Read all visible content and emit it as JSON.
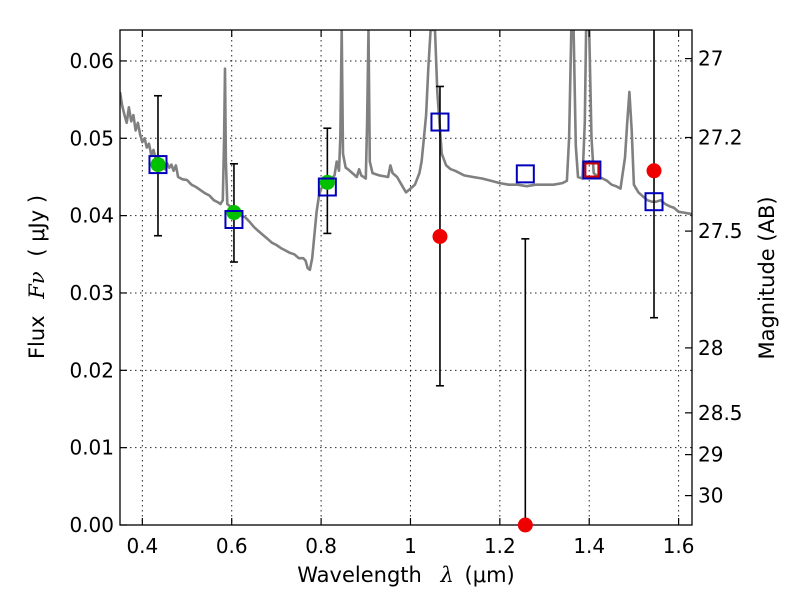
{
  "chart_data": {
    "type": "scatter",
    "title": "",
    "xlabel": "Wavelength",
    "xlabel_symbol": "λ",
    "xlabel_unit": "(μm)",
    "ylabel": "Flux",
    "ylabel_symbol": "Fν",
    "ylabel_unit": "( μJy )",
    "ylabel_right": "Magnitude (AB)",
    "xlim": [
      0.35,
      1.63
    ],
    "ylim": [
      0.0,
      0.064
    ],
    "grid": true,
    "legend": "none",
    "x_ticks": [
      0.4,
      0.6,
      0.8,
      1.0,
      1.2,
      1.4,
      1.6
    ],
    "x_tick_labels": [
      "0.4",
      "0.6",
      "0.8",
      "1",
      "1.2",
      "1.4",
      "1.6"
    ],
    "y_ticks": [
      0.0,
      0.01,
      0.02,
      0.03,
      0.04,
      0.05,
      0.06
    ],
    "y_tick_labels": [
      "0.00",
      "0.01",
      "0.02",
      "0.03",
      "0.04",
      "0.05",
      "0.06"
    ],
    "right_ticks": [
      {
        "label": "27",
        "flux": 0.0603
      },
      {
        "label": "27.2",
        "flux": 0.0501
      },
      {
        "label": "27.5",
        "flux": 0.038
      },
      {
        "label": "28",
        "flux": 0.0229
      },
      {
        "label": "28.5",
        "flux": 0.0145
      },
      {
        "label": "29",
        "flux": 0.0091
      },
      {
        "label": "30",
        "flux": 0.0038
      }
    ],
    "colors": {
      "model": "#808080",
      "green_points": "#00c000",
      "red_points": "#ee0000",
      "blue_squares": "#0000bb",
      "red_square": "#cc0000",
      "errorbars": "#000000"
    },
    "series": [
      {
        "kind": "model-sed",
        "points": [
          [
            0.35,
            0.056
          ],
          [
            0.355,
            0.0542
          ],
          [
            0.36,
            0.053
          ],
          [
            0.365,
            0.052
          ],
          [
            0.37,
            0.054
          ],
          [
            0.375,
            0.0522
          ],
          [
            0.38,
            0.053
          ],
          [
            0.385,
            0.051
          ],
          [
            0.39,
            0.052
          ],
          [
            0.395,
            0.0505
          ],
          [
            0.4,
            0.0495
          ],
          [
            0.405,
            0.05
          ],
          [
            0.41,
            0.0488
          ],
          [
            0.415,
            0.0493
          ],
          [
            0.42,
            0.0478
          ],
          [
            0.425,
            0.0485
          ],
          [
            0.43,
            0.0472
          ],
          [
            0.435,
            0.0478
          ],
          [
            0.44,
            0.0465
          ],
          [
            0.445,
            0.0472
          ],
          [
            0.45,
            0.046
          ],
          [
            0.455,
            0.0468
          ],
          [
            0.46,
            0.0462
          ],
          [
            0.465,
            0.0466
          ],
          [
            0.47,
            0.0458
          ],
          [
            0.475,
            0.0465
          ],
          [
            0.48,
            0.045
          ],
          [
            0.49,
            0.0447
          ],
          [
            0.5,
            0.0446
          ],
          [
            0.51,
            0.044
          ],
          [
            0.52,
            0.0437
          ],
          [
            0.53,
            0.0433
          ],
          [
            0.54,
            0.0429
          ],
          [
            0.55,
            0.0426
          ],
          [
            0.56,
            0.042
          ],
          [
            0.57,
            0.0417
          ],
          [
            0.575,
            0.0415
          ],
          [
            0.58,
            0.042
          ],
          [
            0.583,
            0.05
          ],
          [
            0.585,
            0.059
          ],
          [
            0.587,
            0.047
          ],
          [
            0.59,
            0.0415
          ],
          [
            0.6,
            0.041
          ],
          [
            0.61,
            0.0405
          ],
          [
            0.62,
            0.04
          ],
          [
            0.63,
            0.0398
          ],
          [
            0.64,
            0.0392
          ],
          [
            0.65,
            0.0385
          ],
          [
            0.66,
            0.038
          ],
          [
            0.67,
            0.0375
          ],
          [
            0.68,
            0.037
          ],
          [
            0.69,
            0.0365
          ],
          [
            0.7,
            0.0362
          ],
          [
            0.71,
            0.0358
          ],
          [
            0.72,
            0.0355
          ],
          [
            0.73,
            0.0352
          ],
          [
            0.74,
            0.035
          ],
          [
            0.75,
            0.0345
          ],
          [
            0.76,
            0.0345
          ],
          [
            0.765,
            0.0342
          ],
          [
            0.77,
            0.0332
          ],
          [
            0.775,
            0.033
          ],
          [
            0.78,
            0.0345
          ],
          [
            0.785,
            0.0375
          ],
          [
            0.79,
            0.0405
          ],
          [
            0.795,
            0.0425
          ],
          [
            0.8,
            0.0435
          ],
          [
            0.81,
            0.044
          ],
          [
            0.82,
            0.0445
          ],
          [
            0.83,
            0.0452
          ],
          [
            0.835,
            0.047
          ],
          [
            0.84,
            0.0458
          ],
          [
            0.843,
            0.05
          ],
          [
            0.846,
            0.064
          ],
          [
            0.849,
            0.048
          ],
          [
            0.855,
            0.0462
          ],
          [
            0.86,
            0.046
          ],
          [
            0.87,
            0.0455
          ],
          [
            0.88,
            0.045
          ],
          [
            0.885,
            0.046
          ],
          [
            0.89,
            0.0452
          ],
          [
            0.9,
            0.0448
          ],
          [
            0.903,
            0.052
          ],
          [
            0.906,
            0.064
          ],
          [
            0.909,
            0.047
          ],
          [
            0.915,
            0.0455
          ],
          [
            0.93,
            0.0452
          ],
          [
            0.95,
            0.045
          ],
          [
            0.955,
            0.0465
          ],
          [
            0.96,
            0.0455
          ],
          [
            0.97,
            0.045
          ],
          [
            0.98,
            0.044
          ],
          [
            0.99,
            0.043
          ],
          [
            1.0,
            0.0435
          ],
          [
            1.01,
            0.044
          ],
          [
            1.02,
            0.0455
          ],
          [
            1.025,
            0.047
          ],
          [
            1.03,
            0.05
          ],
          [
            1.035,
            0.053
          ],
          [
            1.04,
            0.059
          ],
          [
            1.045,
            0.064
          ],
          [
            1.055,
            0.064
          ],
          [
            1.06,
            0.056
          ],
          [
            1.065,
            0.052
          ],
          [
            1.07,
            0.048
          ],
          [
            1.08,
            0.0465
          ],
          [
            1.09,
            0.046
          ],
          [
            1.1,
            0.0458
          ],
          [
            1.12,
            0.0452
          ],
          [
            1.14,
            0.045
          ],
          [
            1.16,
            0.0448
          ],
          [
            1.18,
            0.0445
          ],
          [
            1.2,
            0.0442
          ],
          [
            1.22,
            0.044
          ],
          [
            1.24,
            0.044
          ],
          [
            1.26,
            0.0438
          ],
          [
            1.28,
            0.044
          ],
          [
            1.3,
            0.044
          ],
          [
            1.32,
            0.044
          ],
          [
            1.34,
            0.0442
          ],
          [
            1.35,
            0.0445
          ],
          [
            1.355,
            0.05
          ],
          [
            1.36,
            0.064
          ],
          [
            1.365,
            0.064
          ],
          [
            1.37,
            0.049
          ],
          [
            1.375,
            0.045
          ],
          [
            1.385,
            0.0448
          ],
          [
            1.39,
            0.052
          ],
          [
            1.393,
            0.064
          ],
          [
            1.4,
            0.064
          ],
          [
            1.405,
            0.05
          ],
          [
            1.41,
            0.0455
          ],
          [
            1.42,
            0.045
          ],
          [
            1.43,
            0.0448
          ],
          [
            1.44,
            0.0445
          ],
          [
            1.45,
            0.044
          ],
          [
            1.46,
            0.0438
          ],
          [
            1.47,
            0.0435
          ],
          [
            1.48,
            0.0475
          ],
          [
            1.485,
            0.052
          ],
          [
            1.49,
            0.056
          ],
          [
            1.495,
            0.051
          ],
          [
            1.5,
            0.044
          ],
          [
            1.51,
            0.043
          ],
          [
            1.52,
            0.0425
          ],
          [
            1.53,
            0.042
          ],
          [
            1.54,
            0.0418
          ],
          [
            1.55,
            0.0418
          ],
          [
            1.56,
            0.042
          ],
          [
            1.57,
            0.0415
          ],
          [
            1.58,
            0.0412
          ],
          [
            1.59,
            0.041
          ],
          [
            1.6,
            0.0405
          ],
          [
            1.61,
            0.0404
          ],
          [
            1.62,
            0.0403
          ],
          [
            1.63,
            0.0402
          ]
        ]
      },
      {
        "kind": "error-bars",
        "bars": [
          {
            "x": 0.435,
            "ylo": 0.0374,
            "yhi": 0.0555
          },
          {
            "x": 0.605,
            "ylo": 0.034,
            "yhi": 0.0467
          },
          {
            "x": 0.814,
            "ylo": 0.0377,
            "yhi": 0.0513
          },
          {
            "x": 1.066,
            "ylo": 0.018,
            "yhi": 0.0567
          },
          {
            "x": 1.257,
            "ylo": 0.0,
            "yhi": 0.037
          },
          {
            "x": 1.545,
            "ylo": 0.0268,
            "yhi": 0.064
          }
        ]
      },
      {
        "kind": "green-points",
        "points": [
          [
            0.435,
            0.0466
          ],
          [
            0.605,
            0.0404
          ],
          [
            0.814,
            0.0443
          ]
        ]
      },
      {
        "kind": "red-points",
        "points": [
          [
            1.066,
            0.0373
          ],
          [
            1.257,
            0.0
          ],
          [
            1.545,
            0.0458
          ]
        ]
      },
      {
        "kind": "blue-squares",
        "points": [
          [
            0.435,
            0.0466
          ],
          [
            0.605,
            0.0395
          ],
          [
            0.814,
            0.0437
          ],
          [
            1.066,
            0.0521
          ],
          [
            1.257,
            0.0454
          ],
          [
            1.406,
            0.0459
          ],
          [
            1.545,
            0.0418
          ]
        ]
      },
      {
        "kind": "red-squares",
        "points": [
          [
            1.406,
            0.0459
          ]
        ]
      }
    ]
  }
}
